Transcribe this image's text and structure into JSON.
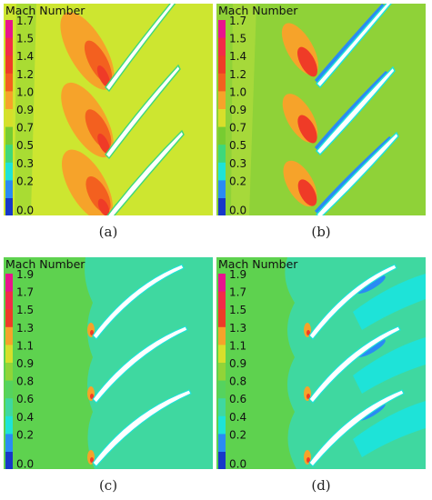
{
  "panels": [
    {
      "id": "a",
      "caption": "(a)",
      "legend_title": "Mach Number",
      "levels": [
        "1.7",
        "1.5",
        "1.4",
        "1.2",
        "1.0",
        "0.9",
        "0.7",
        "0.5",
        "0.3",
        "0.2",
        "0.0"
      ],
      "colors": [
        "#e9138e",
        "#f32a48",
        "#ef3b27",
        "#f3601f",
        "#f6a32a",
        "#d7df2b",
        "#77cc31",
        "#3fd87a",
        "#1ee3d8",
        "#2a8bf3",
        "#1738c8"
      ],
      "background": "#cde630"
    },
    {
      "id": "b",
      "caption": "(b)",
      "legend_title": "Mach Number",
      "levels": [
        "1.7",
        "1.5",
        "1.4",
        "1.2",
        "1.0",
        "0.9",
        "0.7",
        "0.5",
        "0.3",
        "0.2",
        "0.0"
      ],
      "colors": [
        "#e9138e",
        "#f32a48",
        "#ef3b27",
        "#f3601f",
        "#f6a32a",
        "#d7df2b",
        "#77cc31",
        "#3fd87a",
        "#1ee3d8",
        "#2a8bf3",
        "#1738c8"
      ],
      "background": "#8fd238"
    },
    {
      "id": "c",
      "caption": "(c)",
      "legend_title": "Mach Number",
      "levels": [
        "1.9",
        "1.7",
        "1.5",
        "1.3",
        "1.1",
        "0.9",
        "0.8",
        "0.6",
        "0.4",
        "0.2",
        "0.0"
      ],
      "colors": [
        "#e9138e",
        "#f32a48",
        "#ef3b27",
        "#f6a32a",
        "#d7df2b",
        "#91d438",
        "#55d35e",
        "#3fd8a0",
        "#1ee3d8",
        "#2a8bf3",
        "#1738c8"
      ],
      "background": "#5ed24f"
    },
    {
      "id": "d",
      "caption": "(d)",
      "legend_title": "Mach Number",
      "levels": [
        "1.9",
        "1.7",
        "1.5",
        "1.3",
        "1.1",
        "0.9",
        "0.8",
        "0.6",
        "0.4",
        "0.2",
        "0.0"
      ],
      "colors": [
        "#e9138e",
        "#f32a48",
        "#ef3b27",
        "#f6a32a",
        "#d7df2b",
        "#91d438",
        "#55d35e",
        "#3fd8a0",
        "#1ee3d8",
        "#2a8bf3",
        "#1738c8"
      ],
      "background": "#5ed24f"
    }
  ]
}
